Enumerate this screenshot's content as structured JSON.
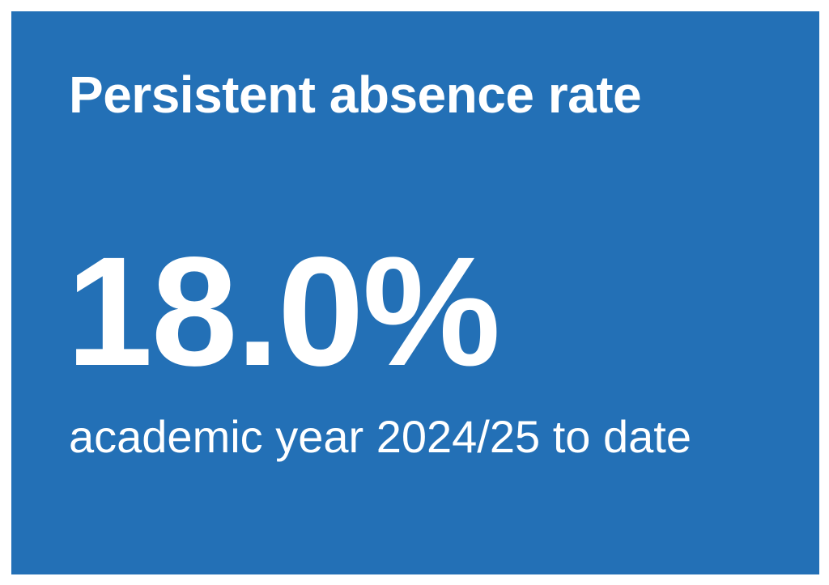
{
  "card": {
    "title": "Persistent absence rate",
    "value": "18.0%",
    "caption": "academic year 2024/25 to date"
  }
}
